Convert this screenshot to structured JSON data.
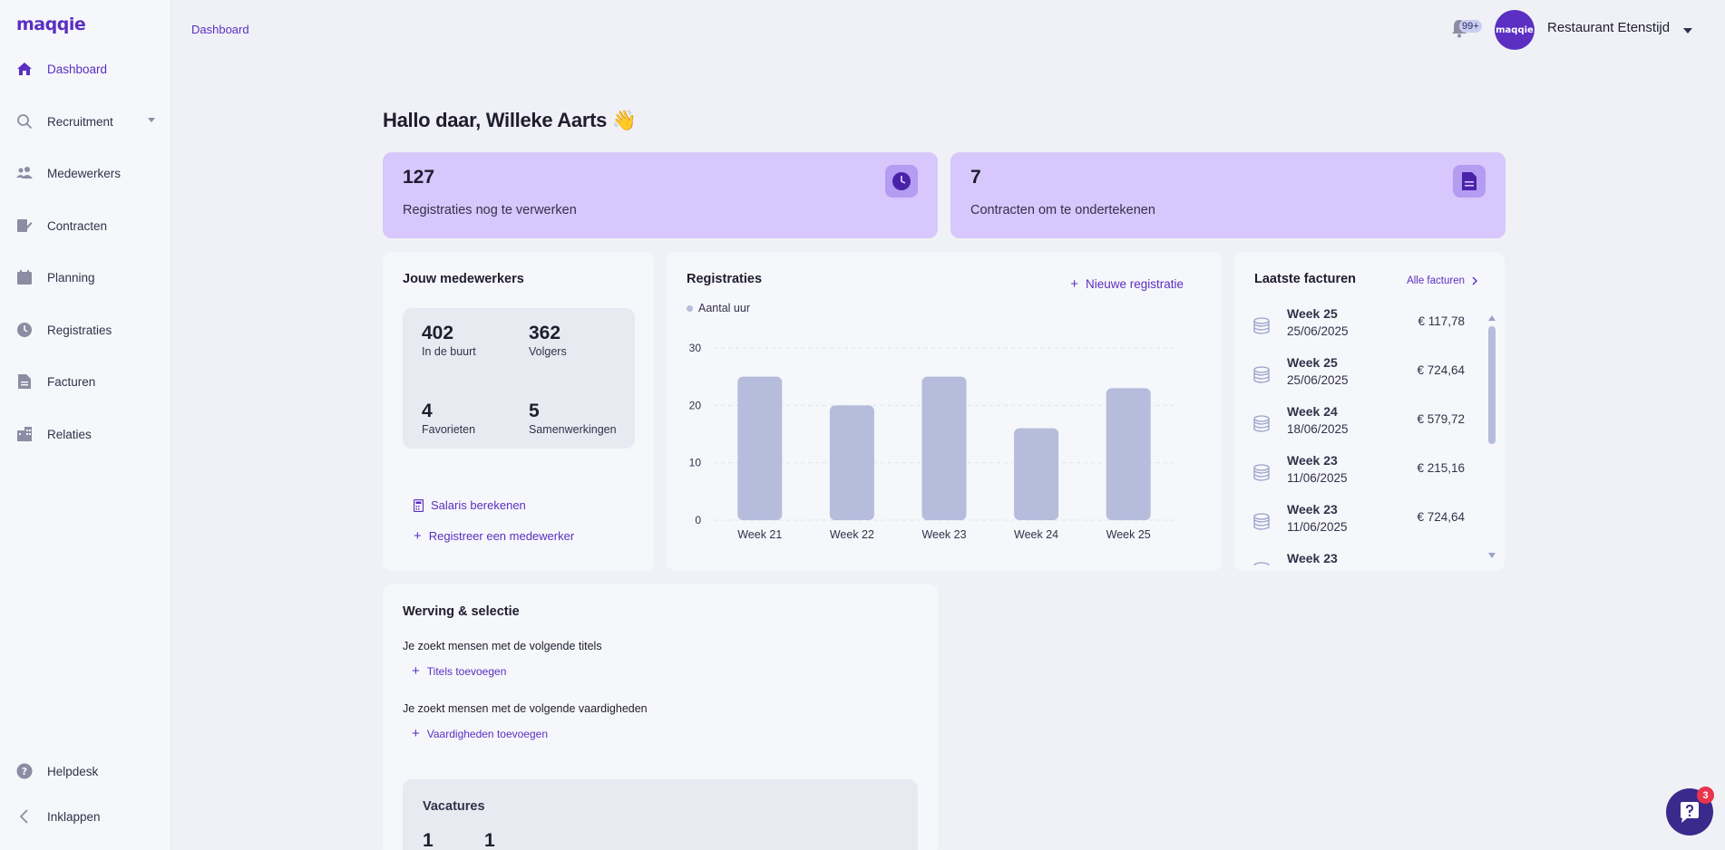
{
  "app": {
    "logo_text": "maqqie"
  },
  "sidebar": {
    "items": [
      {
        "label": "Dashboard",
        "icon": "home-icon"
      },
      {
        "label": "Recruitment",
        "icon": "search-icon"
      },
      {
        "label": "Medewerkers",
        "icon": "people-icon"
      },
      {
        "label": "Contracten",
        "icon": "contract-icon"
      },
      {
        "label": "Planning",
        "icon": "calendar-icon"
      },
      {
        "label": "Registraties",
        "icon": "clock-icon"
      },
      {
        "label": "Facturen",
        "icon": "document-icon"
      },
      {
        "label": "Relaties",
        "icon": "building-icon"
      }
    ],
    "helpdesk_label": "Helpdesk",
    "collapse_label": "Inklappen"
  },
  "header": {
    "breadcrumb": "Dashboard",
    "notification_count": "99+",
    "avatar_text": "maqqie",
    "company_name": "Restaurant Etenstijd"
  },
  "greeting": "Hallo daar, Willeke Aarts 👋",
  "stats": [
    {
      "value": "127",
      "label": "Registraties nog te verwerken",
      "icon": "clock-icon"
    },
    {
      "value": "7",
      "label": "Contracten om te ondertekenen",
      "icon": "document-icon"
    }
  ],
  "employees": {
    "title": "Jouw medewerkers",
    "stats": [
      {
        "value": "402",
        "label": "In de buurt"
      },
      {
        "value": "362",
        "label": "Volgers"
      },
      {
        "value": "4",
        "label": "Favorieten"
      },
      {
        "value": "5",
        "label": "Samenwerkingen"
      }
    ],
    "salary_link": "Salaris berekenen",
    "register_link": "Registreer een medewerker"
  },
  "registrations": {
    "title": "Registraties",
    "new_link": "Nieuwe registratie"
  },
  "chart_data": {
    "type": "bar",
    "categories": [
      "Week 21",
      "Week 22",
      "Week 23",
      "Week 24",
      "Week 25"
    ],
    "series": [
      {
        "name": "Aantal uur",
        "values": [
          25,
          20,
          25,
          16,
          23
        ]
      }
    ],
    "ylim": [
      0,
      30
    ],
    "yticks": [
      0,
      10,
      20,
      30
    ],
    "grid": true,
    "legend": "top-left",
    "color": "#b6bcdc"
  },
  "invoices": {
    "title": "Laatste facturen",
    "all_link": "Alle facturen",
    "rows": [
      {
        "week": "Week 25",
        "date": "25/06/2025",
        "amount": "€ 117,78"
      },
      {
        "week": "Week 25",
        "date": "25/06/2025",
        "amount": "€ 724,64"
      },
      {
        "week": "Week 24",
        "date": "18/06/2025",
        "amount": "€ 579,72"
      },
      {
        "week": "Week 23",
        "date": "11/06/2025",
        "amount": "€ 215,16"
      },
      {
        "week": "Week 23",
        "date": "11/06/2025",
        "amount": "€ 724,64"
      },
      {
        "week": "Week 23",
        "date": "",
        "amount": ""
      }
    ]
  },
  "recruitment": {
    "title": "Werving & selectie",
    "titles_text": "Je zoekt mensen met de volgende titels",
    "titles_link": "Titels toevoegen",
    "skills_text": "Je zoekt mensen met de volgende vaardigheden",
    "skills_link": "Vaardigheden toevoegen",
    "vacancies_title": "Vacatures",
    "vacancy_values": [
      "1",
      "1"
    ]
  },
  "chat": {
    "badge": "3"
  },
  "colors": {
    "accent": "#5a2fc2",
    "card": "#d7c7fc",
    "bar": "#b6bcdc"
  }
}
